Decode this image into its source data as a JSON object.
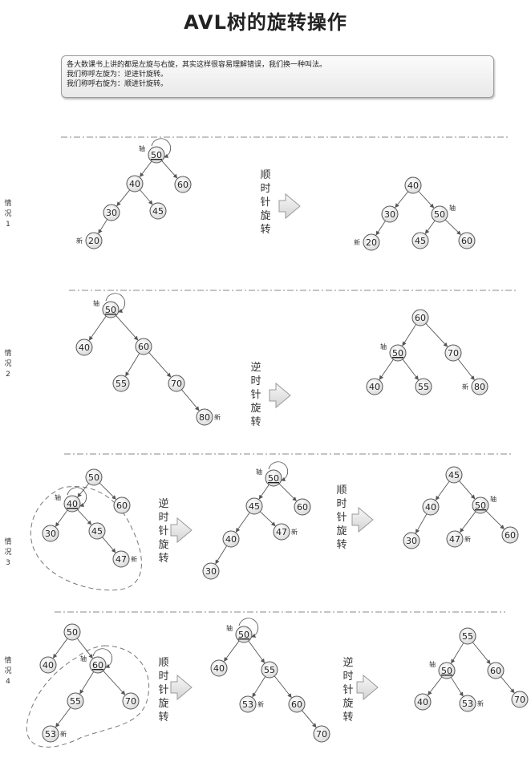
{
  "title": "AVL树的旋转操作",
  "note": {
    "lines": [
      "各大数课书上讲的都是左旋与右旋，其实这样很容易理解错误，我们换一种叫法。",
      "我们称呼左旋为：逆进针旋转。",
      "我们称呼右旋为：顺进针旋转。"
    ]
  },
  "cases": [
    {
      "label": "情况1",
      "steps": [
        {
          "label": "顺时针旋转"
        }
      ],
      "trees": [
        {
          "nodes": [
            {
              "v": "50",
              "pivot": true,
              "tag": "轴",
              "rot": true
            },
            {
              "v": "40",
              "parent": 0
            },
            {
              "v": "60",
              "parent": 0
            },
            {
              "v": "30",
              "parent": 1
            },
            {
              "v": "45",
              "parent": 1
            },
            {
              "v": "20",
              "parent": 3,
              "tag": "新"
            }
          ]
        },
        {
          "nodes": [
            {
              "v": "40"
            },
            {
              "v": "30",
              "parent": 0
            },
            {
              "v": "50",
              "parent": 0,
              "tag": "轴"
            },
            {
              "v": "20",
              "parent": 1,
              "tag": "新"
            },
            {
              "v": "45",
              "parent": 2
            },
            {
              "v": "60",
              "parent": 2
            }
          ]
        }
      ]
    },
    {
      "label": "情况2",
      "steps": [
        {
          "label": "逆时针旋转"
        }
      ],
      "trees": [
        {
          "nodes": [
            {
              "v": "50",
              "pivot": true,
              "tag": "轴",
              "rot": true
            },
            {
              "v": "40",
              "parent": 0
            },
            {
              "v": "60",
              "parent": 0
            },
            {
              "v": "55",
              "parent": 2
            },
            {
              "v": "70",
              "parent": 2
            },
            {
              "v": "80",
              "parent": 4,
              "tag": "新"
            }
          ]
        },
        {
          "nodes": [
            {
              "v": "60"
            },
            {
              "v": "50",
              "parent": 0,
              "pivot": true,
              "tag": "轴"
            },
            {
              "v": "70",
              "parent": 0
            },
            {
              "v": "40",
              "parent": 1
            },
            {
              "v": "55",
              "parent": 1
            },
            {
              "v": "80",
              "parent": 2,
              "tag": "新"
            }
          ]
        }
      ]
    },
    {
      "label": "情况3",
      "steps": [
        {
          "label": "逆时针旋转"
        },
        {
          "label": "顺时针旋转"
        }
      ],
      "trees": [
        {
          "nodes": [
            {
              "v": "50"
            },
            {
              "v": "40",
              "parent": 0,
              "pivot": true,
              "tag": "轴",
              "rot": true
            },
            {
              "v": "60",
              "parent": 0
            },
            {
              "v": "30",
              "parent": 1
            },
            {
              "v": "45",
              "parent": 1
            },
            {
              "v": "47",
              "parent": 4,
              "tag": "新"
            }
          ]
        },
        {
          "nodes": [
            {
              "v": "50",
              "pivot": true,
              "tag": "轴",
              "rot": true
            },
            {
              "v": "45",
              "parent": 0
            },
            {
              "v": "60",
              "parent": 0
            },
            {
              "v": "40",
              "parent": 1
            },
            {
              "v": "47",
              "parent": 1,
              "tag": "新"
            },
            {
              "v": "30",
              "parent": 3
            }
          ]
        },
        {
          "nodes": [
            {
              "v": "45"
            },
            {
              "v": "40",
              "parent": 0
            },
            {
              "v": "50",
              "parent": 0,
              "pivot": true,
              "tag": "轴"
            },
            {
              "v": "30",
              "parent": 1
            },
            {
              "v": "47",
              "parent": 2,
              "tag": "新"
            },
            {
              "v": "60",
              "parent": 2
            }
          ]
        }
      ]
    },
    {
      "label": "情况4",
      "steps": [
        {
          "label": "顺时针旋转"
        },
        {
          "label": "逆时针旋转"
        }
      ],
      "trees": [
        {
          "nodes": [
            {
              "v": "50"
            },
            {
              "v": "40",
              "parent": 0
            },
            {
              "v": "60",
              "parent": 0,
              "pivot": true,
              "tag": "轴",
              "rot": true
            },
            {
              "v": "55",
              "parent": 2
            },
            {
              "v": "70",
              "parent": 2
            },
            {
              "v": "53",
              "parent": 3,
              "tag": "新"
            }
          ]
        },
        {
          "nodes": [
            {
              "v": "50",
              "pivot": true,
              "tag": "轴",
              "rot": true
            },
            {
              "v": "40",
              "parent": 0
            },
            {
              "v": "55",
              "parent": 0
            },
            {
              "v": "53",
              "parent": 2,
              "tag": "新"
            },
            {
              "v": "60",
              "parent": 2
            },
            {
              "v": "70",
              "parent": 4
            }
          ]
        },
        {
          "nodes": [
            {
              "v": "55"
            },
            {
              "v": "50",
              "parent": 0,
              "pivot": true,
              "tag": "轴"
            },
            {
              "v": "60",
              "parent": 0
            },
            {
              "v": "40",
              "parent": 1
            },
            {
              "v": "53",
              "parent": 1,
              "tag": "新"
            },
            {
              "v": "70",
              "parent": 2
            }
          ]
        }
      ]
    }
  ]
}
